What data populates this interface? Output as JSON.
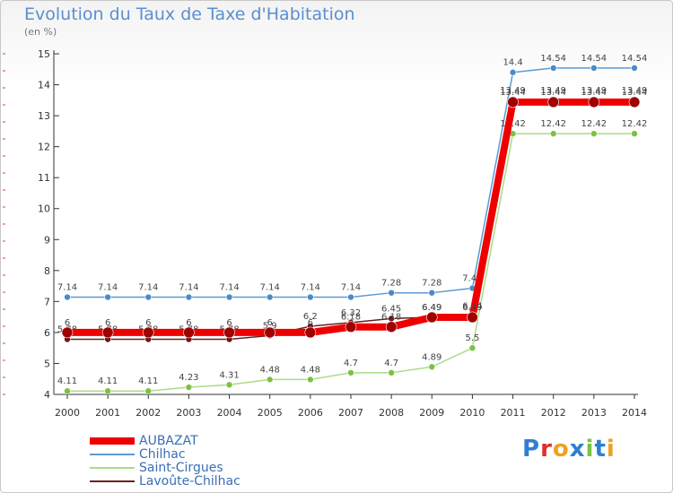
{
  "title": "Evolution du Taux de Taxe d'Habitation",
  "subtitle": "(en %)",
  "logo": {
    "text": "Proxiti",
    "colors": [
      "#2e7fd1",
      "#e0302a",
      "#f0a020",
      "#2e7fd1",
      "#7cc242",
      "#2e7fd1",
      "#f0a020"
    ]
  },
  "chart_data": {
    "type": "line",
    "x": [
      "2000",
      "2001",
      "2002",
      "2003",
      "2004",
      "2005",
      "2006",
      "2007",
      "2008",
      "2009",
      "2010",
      "2011",
      "2012",
      "2013",
      "2014"
    ],
    "ylim": [
      4,
      15
    ],
    "yticks": [
      "4",
      "5",
      "6",
      "7",
      "8",
      "9",
      "10",
      "11",
      "12",
      "13",
      "14",
      "15"
    ],
    "grid": false,
    "legend_position": "bottom-left",
    "series": [
      {
        "name": "Chilhac",
        "color": "#5b9bd5",
        "marker": "#4a8ac8",
        "values": [
          7.14,
          7.14,
          7.14,
          7.14,
          7.14,
          7.14,
          7.14,
          7.14,
          7.28,
          7.28,
          7.43,
          14.4,
          14.54,
          14.54,
          14.54
        ],
        "labels": [
          "7.14",
          "7.14",
          "7.14",
          "7.14",
          "7.14",
          "7.14",
          "7.14",
          "7.14",
          "7.28",
          "7.28",
          "7.43",
          "14.4",
          "14.54",
          "14.54",
          "14.54"
        ]
      },
      {
        "name": "Saint-Cirgues",
        "color": "#a8dc88",
        "marker": "#7cc242",
        "values": [
          4.11,
          4.11,
          4.11,
          4.23,
          4.31,
          4.48,
          4.48,
          4.7,
          4.7,
          4.89,
          5.5,
          12.42,
          12.42,
          12.42,
          12.42
        ],
        "labels": [
          "4.11",
          "4.11",
          "4.11",
          "4.23",
          "4.31",
          "4.48",
          "4.48",
          "4.7",
          "4.7",
          "4.89",
          "5.5",
          "12.42",
          "12.42",
          "12.42",
          "12.42"
        ]
      },
      {
        "name": "Lavoûte-Chilhac",
        "color": "#6b2020",
        "marker": "#6b1515",
        "values": [
          5.78,
          5.78,
          5.78,
          5.78,
          5.78,
          5.9,
          6.2,
          6.32,
          6.45,
          6.49,
          6.54,
          13.49,
          13.49,
          13.49,
          13.49
        ],
        "labels": [
          "5.78",
          "5.78",
          "5.78",
          "5.78",
          "5.78",
          "5.9",
          "6.2",
          "6.32",
          "6.45",
          "6.49",
          "6.54",
          "13.49",
          "13.49",
          "13.49",
          "13.49"
        ]
      },
      {
        "name": "AUBAZAT",
        "color": "#ee0000",
        "marker": "#a00000",
        "values": [
          6,
          6,
          6,
          6,
          6,
          6,
          6,
          6.18,
          6.18,
          6.49,
          6.49,
          13.44,
          13.44,
          13.44,
          13.44
        ],
        "labels": [
          "6",
          "6",
          "6",
          "6",
          "6",
          "6",
          "6",
          "6.18",
          "6.18",
          "6.49",
          "6.49",
          "13.44",
          "13.44",
          "13.44",
          "13.44"
        ]
      }
    ],
    "legend_order": [
      "AUBAZAT",
      "Chilhac",
      "Saint-Cirgues",
      "Lavoûte-Chilhac"
    ]
  }
}
